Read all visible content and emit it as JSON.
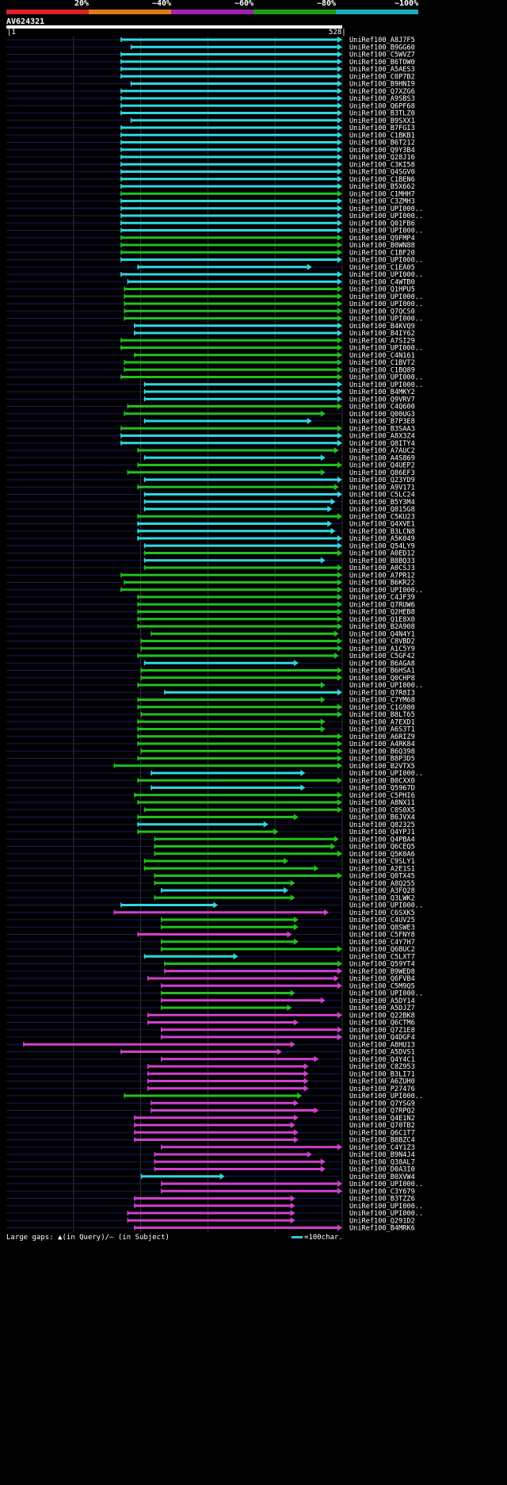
{
  "header": {
    "percent_labels": [
      "20%",
      "~40%",
      "~60%",
      "~80%",
      "~100%"
    ],
    "legend_colors": [
      "#e0202a",
      "#e07a18",
      "#a020b0",
      "#1f9a18",
      "#18b0b8"
    ],
    "accession": "AV624321",
    "query_start": "1",
    "query_end": "528"
  },
  "colors": {
    "cyan": "#30d8e0",
    "green": "#20c020",
    "magenta": "#d040d0",
    "track": "#1a1a5a"
  },
  "hits": [
    {
      "name": "UniRef100_A8J7F5",
      "s": 0.34,
      "e": 1.0,
      "c": "cyan"
    },
    {
      "name": "UniRef100_B9GG60",
      "s": 0.37,
      "e": 1.0,
      "c": "cyan"
    },
    {
      "name": "UniRef100_C5WVZ7",
      "s": 0.34,
      "e": 1.0,
      "c": "cyan"
    },
    {
      "name": "UniRef100_B6TOW0",
      "s": 0.34,
      "e": 1.0,
      "c": "cyan"
    },
    {
      "name": "UniRef100_A5AES3",
      "s": 0.34,
      "e": 1.0,
      "c": "cyan"
    },
    {
      "name": "UniRef100_C0P7B2",
      "s": 0.34,
      "e": 1.0,
      "c": "cyan"
    },
    {
      "name": "UniRef100_B9HNI9",
      "s": 0.37,
      "e": 1.0,
      "c": "cyan"
    },
    {
      "name": "UniRef100_Q7XZG6",
      "s": 0.34,
      "e": 1.0,
      "c": "cyan"
    },
    {
      "name": "UniRef100_A9SBS3",
      "s": 0.34,
      "e": 1.0,
      "c": "cyan"
    },
    {
      "name": "UniRef100_Q6PF68",
      "s": 0.34,
      "e": 1.0,
      "c": "cyan"
    },
    {
      "name": "UniRef100_B3TLZ0",
      "s": 0.34,
      "e": 1.0,
      "c": "cyan"
    },
    {
      "name": "UniRef100_B9SXX1",
      "s": 0.37,
      "e": 1.0,
      "c": "cyan"
    },
    {
      "name": "UniRef100_B7FGI3",
      "s": 0.34,
      "e": 1.0,
      "c": "cyan"
    },
    {
      "name": "UniRef100_C1BKB1",
      "s": 0.34,
      "e": 1.0,
      "c": "cyan"
    },
    {
      "name": "UniRef100_B6T212",
      "s": 0.34,
      "e": 1.0,
      "c": "cyan"
    },
    {
      "name": "UniRef100_Q9Y3B4",
      "s": 0.34,
      "e": 1.0,
      "c": "cyan"
    },
    {
      "name": "UniRef100_Q28J16",
      "s": 0.34,
      "e": 1.0,
      "c": "cyan"
    },
    {
      "name": "UniRef100_C3KI58",
      "s": 0.34,
      "e": 1.0,
      "c": "cyan"
    },
    {
      "name": "UniRef100_Q4SGV0",
      "s": 0.34,
      "e": 1.0,
      "c": "cyan"
    },
    {
      "name": "UniRef100_C1BEN6",
      "s": 0.34,
      "e": 1.0,
      "c": "cyan"
    },
    {
      "name": "UniRef100_B5X662",
      "s": 0.34,
      "e": 1.0,
      "c": "cyan"
    },
    {
      "name": "UniRef100_C1MHH7",
      "s": 0.34,
      "e": 1.0,
      "c": "green"
    },
    {
      "name": "UniRef100_C3ZMH3",
      "s": 0.34,
      "e": 1.0,
      "c": "cyan"
    },
    {
      "name": "UniRef100_UPI000...",
      "s": 0.34,
      "e": 1.0,
      "c": "cyan"
    },
    {
      "name": "UniRef100_UPI000...",
      "s": 0.34,
      "e": 1.0,
      "c": "cyan"
    },
    {
      "name": "UniRef100_Q01FB6",
      "s": 0.34,
      "e": 1.0,
      "c": "cyan"
    },
    {
      "name": "UniRef100_UPI000...",
      "s": 0.34,
      "e": 1.0,
      "c": "cyan"
    },
    {
      "name": "UniRef100_Q9FMP4",
      "s": 0.34,
      "e": 1.0,
      "c": "green"
    },
    {
      "name": "UniRef100_B0WN88",
      "s": 0.34,
      "e": 1.0,
      "c": "green"
    },
    {
      "name": "UniRef100_C1BF20",
      "s": 0.34,
      "e": 1.0,
      "c": "green"
    },
    {
      "name": "UniRef100_UPI000...",
      "s": 0.34,
      "e": 1.0,
      "c": "cyan"
    },
    {
      "name": "UniRef100_C1EA05",
      "s": 0.39,
      "e": 0.91,
      "c": "cyan"
    },
    {
      "name": "UniRef100_UPI000...",
      "s": 0.34,
      "e": 1.0,
      "c": "cyan"
    },
    {
      "name": "UniRef100_C4WTB0",
      "s": 0.36,
      "e": 1.0,
      "c": "cyan"
    },
    {
      "name": "UniRef100_Q1HPU5",
      "s": 0.35,
      "e": 1.0,
      "c": "green"
    },
    {
      "name": "UniRef100_UPI000...",
      "s": 0.35,
      "e": 1.0,
      "c": "green"
    },
    {
      "name": "UniRef100_UPI000...",
      "s": 0.35,
      "e": 1.0,
      "c": "green"
    },
    {
      "name": "UniRef100_Q7QCS0",
      "s": 0.35,
      "e": 1.0,
      "c": "green"
    },
    {
      "name": "UniRef100_UPI000...",
      "s": 0.35,
      "e": 1.0,
      "c": "green"
    },
    {
      "name": "UniRef100_B4KVQ9",
      "s": 0.38,
      "e": 1.0,
      "c": "cyan"
    },
    {
      "name": "UniRef100_B4IY62",
      "s": 0.38,
      "e": 1.0,
      "c": "cyan"
    },
    {
      "name": "UniRef100_A7SI29",
      "s": 0.34,
      "e": 1.0,
      "c": "green"
    },
    {
      "name": "UniRef100_UPI000...",
      "s": 0.34,
      "e": 1.0,
      "c": "green"
    },
    {
      "name": "UniRef100_C4N161",
      "s": 0.38,
      "e": 1.0,
      "c": "green"
    },
    {
      "name": "UniRef100_C1BVT2",
      "s": 0.35,
      "e": 1.0,
      "c": "green"
    },
    {
      "name": "UniRef100_C1BQ89",
      "s": 0.35,
      "e": 1.0,
      "c": "green"
    },
    {
      "name": "UniRef100_UPI000...",
      "s": 0.34,
      "e": 1.0,
      "c": "green"
    },
    {
      "name": "UniRef100_UPI000...",
      "s": 0.41,
      "e": 1.0,
      "c": "cyan"
    },
    {
      "name": "UniRef100_B4MKY2",
      "s": 0.41,
      "e": 1.0,
      "c": "cyan"
    },
    {
      "name": "UniRef100_Q9VRV7",
      "s": 0.41,
      "e": 1.0,
      "c": "cyan"
    },
    {
      "name": "UniRef100_C4Q600",
      "s": 0.36,
      "e": 1.0,
      "c": "green"
    },
    {
      "name": "UniRef100_Q00UG3",
      "s": 0.35,
      "e": 0.95,
      "c": "green"
    },
    {
      "name": "UniRef100_B7P3E8",
      "s": 0.41,
      "e": 0.91,
      "c": "cyan"
    },
    {
      "name": "UniRef100_B3SAA3",
      "s": 0.34,
      "e": 1.0,
      "c": "green"
    },
    {
      "name": "UniRef100_A8X3Z4",
      "s": 0.34,
      "e": 1.0,
      "c": "cyan"
    },
    {
      "name": "UniRef100_Q8ITY4",
      "s": 0.34,
      "e": 1.0,
      "c": "cyan"
    },
    {
      "name": "UniRef100_A7AUC2",
      "s": 0.39,
      "e": 0.99,
      "c": "green"
    },
    {
      "name": "UniRef100_A4S869",
      "s": 0.41,
      "e": 0.95,
      "c": "cyan"
    },
    {
      "name": "UniRef100_Q4UEP2",
      "s": 0.39,
      "e": 1.0,
      "c": "green"
    },
    {
      "name": "UniRef100_Q86EF3",
      "s": 0.36,
      "e": 0.95,
      "c": "green"
    },
    {
      "name": "UniRef100_Q23YD9",
      "s": 0.41,
      "e": 1.0,
      "c": "cyan"
    },
    {
      "name": "UniRef100_A9V171",
      "s": 0.39,
      "e": 0.99,
      "c": "green"
    },
    {
      "name": "UniRef100_C5LC24",
      "s": 0.41,
      "e": 1.0,
      "c": "cyan"
    },
    {
      "name": "UniRef100_B5Y3M4",
      "s": 0.41,
      "e": 0.98,
      "c": "cyan"
    },
    {
      "name": "UniRef100_Q815G8",
      "s": 0.41,
      "e": 0.97,
      "c": "cyan"
    },
    {
      "name": "UniRef100_C5KU23",
      "s": 0.39,
      "e": 1.0,
      "c": "green"
    },
    {
      "name": "UniRef100_Q4XVE1",
      "s": 0.39,
      "e": 0.97,
      "c": "cyan"
    },
    {
      "name": "UniRef100_B3LCN8",
      "s": 0.39,
      "e": 0.98,
      "c": "cyan"
    },
    {
      "name": "UniRef100_A5K049",
      "s": 0.39,
      "e": 1.0,
      "c": "cyan"
    },
    {
      "name": "UniRef100_Q54LY9",
      "s": 0.41,
      "e": 1.0,
      "c": "cyan"
    },
    {
      "name": "UniRef100_A0ED12",
      "s": 0.41,
      "e": 1.0,
      "c": "green"
    },
    {
      "name": "UniRef100_B8BQ33",
      "s": 0.41,
      "e": 0.95,
      "c": "cyan"
    },
    {
      "name": "UniRef100_A0CSJ3",
      "s": 0.41,
      "e": 1.0,
      "c": "green"
    },
    {
      "name": "UniRef100_A7PR12",
      "s": 0.34,
      "e": 1.0,
      "c": "green"
    },
    {
      "name": "UniRef100_B6KR22",
      "s": 0.35,
      "e": 1.0,
      "c": "green"
    },
    {
      "name": "UniRef100_UPI000...",
      "s": 0.34,
      "e": 1.0,
      "c": "green"
    },
    {
      "name": "UniRef100_C4JF39",
      "s": 0.39,
      "e": 1.0,
      "c": "green"
    },
    {
      "name": "UniRef100_Q7RUW6",
      "s": 0.39,
      "e": 1.0,
      "c": "green"
    },
    {
      "name": "UniRef100_Q2HEB8",
      "s": 0.39,
      "e": 1.0,
      "c": "green"
    },
    {
      "name": "UniRef100_Q1E8X0",
      "s": 0.39,
      "e": 1.0,
      "c": "green"
    },
    {
      "name": "UniRef100_B2A908",
      "s": 0.39,
      "e": 1.0,
      "c": "green"
    },
    {
      "name": "UniRef100_Q4N4Y1",
      "s": 0.43,
      "e": 0.99,
      "c": "green"
    },
    {
      "name": "UniRef100_C8VBD2",
      "s": 0.4,
      "e": 1.0,
      "c": "green"
    },
    {
      "name": "UniRef100_A1C5Y9",
      "s": 0.4,
      "e": 1.0,
      "c": "green"
    },
    {
      "name": "UniRef100_C5GF42",
      "s": 0.39,
      "e": 0.99,
      "c": "green"
    },
    {
      "name": "UniRef100_B6AGA8",
      "s": 0.41,
      "e": 0.87,
      "c": "cyan"
    },
    {
      "name": "UniRef100_B6HSA1",
      "s": 0.4,
      "e": 1.0,
      "c": "green"
    },
    {
      "name": "UniRef100_Q0CHP8",
      "s": 0.4,
      "e": 1.0,
      "c": "green"
    },
    {
      "name": "UniRef100_UPI000...",
      "s": 0.39,
      "e": 0.95,
      "c": "green"
    },
    {
      "name": "UniRef100_Q7R8I3",
      "s": 0.47,
      "e": 1.0,
      "c": "cyan"
    },
    {
      "name": "UniRef100_C7YM68",
      "s": 0.39,
      "e": 0.95,
      "c": "green"
    },
    {
      "name": "UniRef100_C1G980",
      "s": 0.39,
      "e": 1.0,
      "c": "green"
    },
    {
      "name": "UniRef100_B8LT65",
      "s": 0.4,
      "e": 1.0,
      "c": "green"
    },
    {
      "name": "UniRef100_A7EXD1",
      "s": 0.39,
      "e": 0.95,
      "c": "green"
    },
    {
      "name": "UniRef100_A6S3T1",
      "s": 0.39,
      "e": 0.95,
      "c": "green"
    },
    {
      "name": "UniRef100_A6RIZ9",
      "s": 0.39,
      "e": 1.0,
      "c": "green"
    },
    {
      "name": "UniRef100_A4RK84",
      "s": 0.39,
      "e": 1.0,
      "c": "green"
    },
    {
      "name": "UniRef100_B6Q398",
      "s": 0.4,
      "e": 1.0,
      "c": "green"
    },
    {
      "name": "UniRef100_B8P3D5",
      "s": 0.39,
      "e": 1.0,
      "c": "green"
    },
    {
      "name": "UniRef100_B2VTX5",
      "s": 0.32,
      "e": 1.0,
      "c": "green"
    },
    {
      "name": "UniRef100_UPI000...",
      "s": 0.43,
      "e": 0.89,
      "c": "cyan"
    },
    {
      "name": "UniRef100_B0CXX0",
      "s": 0.39,
      "e": 1.0,
      "c": "green"
    },
    {
      "name": "UniRef100_Q5967D",
      "s": 0.43,
      "e": 0.89,
      "c": "cyan"
    },
    {
      "name": "UniRef100_C5PHI6",
      "s": 0.38,
      "e": 1.0,
      "c": "green"
    },
    {
      "name": "UniRef100_A8NX11",
      "s": 0.39,
      "e": 1.0,
      "c": "green"
    },
    {
      "name": "UniRef100_C0S0X5",
      "s": 0.41,
      "e": 1.0,
      "c": "green"
    },
    {
      "name": "UniRef100_B6JVX4",
      "s": 0.39,
      "e": 0.87,
      "c": "green"
    },
    {
      "name": "UniRef100_Q82325",
      "s": 0.39,
      "e": 0.78,
      "c": "cyan"
    },
    {
      "name": "UniRef100_Q4YPJ1",
      "s": 0.39,
      "e": 0.81,
      "c": "green"
    },
    {
      "name": "UniRef100_Q4PBA4",
      "s": 0.44,
      "e": 0.99,
      "c": "green"
    },
    {
      "name": "UniRef100_Q6CEQ5",
      "s": 0.44,
      "e": 0.98,
      "c": "green"
    },
    {
      "name": "UniRef100_Q5K0A6",
      "s": 0.44,
      "e": 1.0,
      "c": "green"
    },
    {
      "name": "UniRef100_C9SLY1",
      "s": 0.41,
      "e": 0.84,
      "c": "green"
    },
    {
      "name": "UniRef100_A2E1S1",
      "s": 0.41,
      "e": 0.93,
      "c": "green"
    },
    {
      "name": "UniRef100_Q0TX45",
      "s": 0.44,
      "e": 1.0,
      "c": "green"
    },
    {
      "name": "UniRef100_A8Q255",
      "s": 0.44,
      "e": 0.86,
      "c": "green"
    },
    {
      "name": "UniRef100_A3FQ28",
      "s": 0.46,
      "e": 0.84,
      "c": "cyan"
    },
    {
      "name": "UniRef100_Q3LWK2",
      "s": 0.44,
      "e": 0.86,
      "c": "green"
    },
    {
      "name": "UniRef100_UPI000...",
      "s": 0.34,
      "e": 0.63,
      "c": "cyan"
    },
    {
      "name": "UniRef100_C6SXK5",
      "s": 0.32,
      "e": 0.96,
      "c": "magenta"
    },
    {
      "name": "UniRef100_C4UV25",
      "s": 0.46,
      "e": 0.87,
      "c": "green"
    },
    {
      "name": "UniRef100_Q8SWE3",
      "s": 0.46,
      "e": 0.87,
      "c": "green"
    },
    {
      "name": "UniRef100_C5FNY8",
      "s": 0.39,
      "e": 0.85,
      "c": "magenta"
    },
    {
      "name": "UniRef100_C4Y7H7",
      "s": 0.46,
      "e": 0.87,
      "c": "green"
    },
    {
      "name": "UniRef100_Q6BUC2",
      "s": 0.46,
      "e": 1.0,
      "c": "green"
    },
    {
      "name": "UniRef100_C5LXT7",
      "s": 0.41,
      "e": 0.69,
      "c": "cyan"
    },
    {
      "name": "UniRef100_Q59YT4",
      "s": 0.47,
      "e": 1.0,
      "c": "green"
    },
    {
      "name": "UniRef100_B9WED8",
      "s": 0.47,
      "e": 1.0,
      "c": "magenta"
    },
    {
      "name": "UniRef100_Q6FVB4",
      "s": 0.42,
      "e": 0.99,
      "c": "magenta"
    },
    {
      "name": "UniRef100_C5M9Q5",
      "s": 0.46,
      "e": 1.0,
      "c": "magenta"
    },
    {
      "name": "UniRef100_UPI000...",
      "s": 0.46,
      "e": 0.86,
      "c": "green"
    },
    {
      "name": "UniRef100_A5DY14",
      "s": 0.46,
      "e": 0.95,
      "c": "magenta"
    },
    {
      "name": "UniRef100_A5DJZ7",
      "s": 0.46,
      "e": 0.85,
      "c": "green"
    },
    {
      "name": "UniRef100_Q22BK8",
      "s": 0.42,
      "e": 1.0,
      "c": "magenta"
    },
    {
      "name": "UniRef100_Q6CTM6",
      "s": 0.42,
      "e": 0.87,
      "c": "magenta"
    },
    {
      "name": "UniRef100_Q7Z1E8",
      "s": 0.46,
      "e": 1.0,
      "c": "magenta"
    },
    {
      "name": "UniRef100_Q4DGF4",
      "s": 0.46,
      "e": 1.0,
      "c": "magenta"
    },
    {
      "name": "UniRef100_A8HU13",
      "s": 0.05,
      "e": 0.86,
      "c": "magenta"
    },
    {
      "name": "UniRef100_A5DVS1",
      "s": 0.34,
      "e": 0.82,
      "c": "magenta"
    },
    {
      "name": "UniRef100_Q4Y4C1",
      "s": 0.46,
      "e": 0.93,
      "c": "magenta"
    },
    {
      "name": "UniRef100_C8Z953",
      "s": 0.42,
      "e": 0.9,
      "c": "magenta"
    },
    {
      "name": "UniRef100_B3LI71",
      "s": 0.42,
      "e": 0.9,
      "c": "magenta"
    },
    {
      "name": "UniRef100_A6ZUH0",
      "s": 0.42,
      "e": 0.9,
      "c": "magenta"
    },
    {
      "name": "UniRef100_P27476",
      "s": 0.42,
      "e": 0.9,
      "c": "magenta"
    },
    {
      "name": "UniRef100_UPI000...",
      "s": 0.35,
      "e": 0.88,
      "c": "green"
    },
    {
      "name": "UniRef100_Q7YSG9",
      "s": 0.43,
      "e": 0.87,
      "c": "magenta"
    },
    {
      "name": "UniRef100_Q7RPQ2",
      "s": 0.43,
      "e": 0.93,
      "c": "magenta"
    },
    {
      "name": "UniRef100_Q4E1N2",
      "s": 0.38,
      "e": 0.87,
      "c": "magenta"
    },
    {
      "name": "UniRef100_Q70TB2",
      "s": 0.38,
      "e": 0.86,
      "c": "magenta"
    },
    {
      "name": "UniRef100_Q6C1T7",
      "s": 0.38,
      "e": 0.87,
      "c": "magenta"
    },
    {
      "name": "UniRef100_B8BZC4",
      "s": 0.38,
      "e": 0.87,
      "c": "magenta"
    },
    {
      "name": "UniRef100_C4Y1Z3",
      "s": 0.46,
      "e": 1.0,
      "c": "magenta"
    },
    {
      "name": "UniRef100_B9N4J4",
      "s": 0.44,
      "e": 0.91,
      "c": "magenta"
    },
    {
      "name": "UniRef100_Q38AL7",
      "s": 0.44,
      "e": 0.95,
      "c": "magenta"
    },
    {
      "name": "UniRef100_D0A3I0",
      "s": 0.44,
      "e": 0.95,
      "c": "magenta"
    },
    {
      "name": "UniRef100_B0XVW4",
      "s": 0.4,
      "e": 0.65,
      "c": "cyan"
    },
    {
      "name": "UniRef100_UPI000...",
      "s": 0.46,
      "e": 1.0,
      "c": "magenta"
    },
    {
      "name": "UniRef100_C3Y679",
      "s": 0.46,
      "e": 1.0,
      "c": "magenta"
    },
    {
      "name": "UniRef100_B3TZZ6",
      "s": 0.38,
      "e": 0.86,
      "c": "magenta"
    },
    {
      "name": "UniRef100_UPI000...",
      "s": 0.38,
      "e": 0.86,
      "c": "magenta"
    },
    {
      "name": "UniRef100_UPI000...",
      "s": 0.36,
      "e": 0.86,
      "c": "magenta"
    },
    {
      "name": "UniRef100_Q291D2",
      "s": 0.36,
      "e": 0.86,
      "c": "magenta"
    },
    {
      "name": "UniRef100_B4MRK6",
      "s": 0.38,
      "e": 1.0,
      "c": "magenta"
    }
  ],
  "footer": {
    "gaps_text": "Large gaps: ▲(in Query)/— (in Subject)",
    "scale_text": "=100char."
  }
}
